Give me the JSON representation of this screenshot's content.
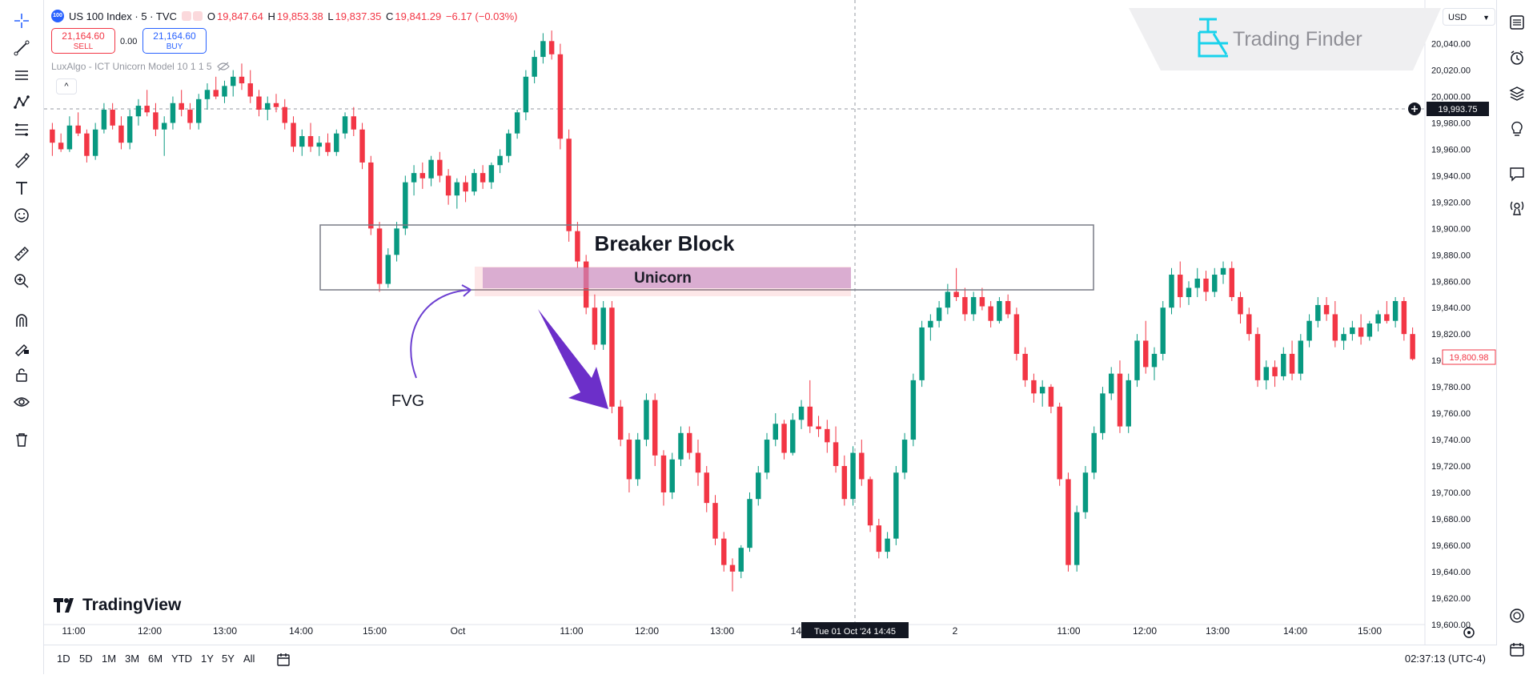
{
  "header": {
    "symbol_badge": "100",
    "symbol": "US 100 Index · 5 · TVC",
    "ohlc": [
      {
        "label": "O",
        "value": "19,847.64"
      },
      {
        "label": "H",
        "value": "19,853.38"
      },
      {
        "label": "L",
        "value": "19,837.35"
      },
      {
        "label": "C",
        "value": "19,841.29"
      }
    ],
    "change": "−6.17 (−0.03%)"
  },
  "trade": {
    "sell_price": "21,164.60",
    "sell_label": "SELL",
    "spread": "0.00",
    "buy_price": "21,164.60",
    "buy_label": "BUY"
  },
  "indicator": {
    "name": "LuxAlgo - ICT Unicorn Model 10 1 1 5"
  },
  "currency": "USD",
  "logo_text": "Trading Finder",
  "watermark": "TradingView",
  "chart_data": {
    "type": "candlestick",
    "symbol": "US 100 Index",
    "interval": "5",
    "price_axis": [
      "20,040.00",
      "20,020.00",
      "20,000.00",
      "19,980.00",
      "19,960.00",
      "19,940.00",
      "19,920.00",
      "19,900.00",
      "19,880.00",
      "19,860.00",
      "19,840.00",
      "19,820.00",
      "19,800.00",
      "19,780.00",
      "19,760.00",
      "19,740.00",
      "19,720.00",
      "19,700.00",
      "19,680.00",
      "19,660.00",
      "19,640.00",
      "19,620.00",
      "19,600.00"
    ],
    "time_axis": [
      "11:00",
      "12:00",
      "13:00",
      "14:00",
      "15:00",
      "Oct",
      "11:00",
      "12:00",
      "13:00",
      "14:",
      "2",
      "11:00",
      "12:00",
      "13:00",
      "14:00",
      "15:00"
    ],
    "crosshair_time": "Tue 01 Oct '24   14:45",
    "crosshair_price": "19,993.75",
    "last_price": "19,800.98",
    "ylim": [
      19600,
      20050
    ],
    "colors": {
      "up": "#089981",
      "down": "#f23645"
    },
    "annotations": {
      "breaker_block": "Breaker Block",
      "unicorn": "Unicorn",
      "fvg": "FVG"
    },
    "candles": [
      [
        19975,
        19980,
        19955,
        19965
      ],
      [
        19965,
        19972,
        19958,
        19960
      ],
      [
        19960,
        19985,
        19958,
        19978
      ],
      [
        19978,
        19988,
        19970,
        19972
      ],
      [
        19972,
        19975,
        19950,
        19955
      ],
      [
        19955,
        19980,
        19952,
        19975
      ],
      [
        19975,
        19995,
        19972,
        19990
      ],
      [
        19990,
        19995,
        19975,
        19978
      ],
      [
        19978,
        19985,
        19960,
        19965
      ],
      [
        19965,
        19990,
        19960,
        19985
      ],
      [
        19985,
        19998,
        19978,
        19993
      ],
      [
        19993,
        20005,
        19985,
        19988
      ],
      [
        19988,
        19995,
        19970,
        19975
      ],
      [
        19975,
        19985,
        19955,
        19980
      ],
      [
        19980,
        20000,
        19975,
        19995
      ],
      [
        19995,
        20005,
        19985,
        19990
      ],
      [
        19990,
        19995,
        19975,
        19980
      ],
      [
        19980,
        20002,
        19975,
        19998
      ],
      [
        19998,
        20010,
        19990,
        20005
      ],
      [
        20005,
        20015,
        19998,
        20000
      ],
      [
        20000,
        20012,
        19995,
        20008
      ],
      [
        20008,
        20020,
        20000,
        20015
      ],
      [
        20015,
        20025,
        20005,
        20010
      ],
      [
        20010,
        20020,
        19995,
        20000
      ],
      [
        20000,
        20005,
        19985,
        19990
      ],
      [
        19990,
        20000,
        19982,
        19995
      ],
      [
        19995,
        20002,
        19988,
        19992
      ],
      [
        19992,
        19998,
        19975,
        19980
      ],
      [
        19980,
        19985,
        19958,
        19962
      ],
      [
        19962,
        19975,
        19955,
        19970
      ],
      [
        19970,
        19980,
        19958,
        19962
      ],
      [
        19962,
        19970,
        19955,
        19965
      ],
      [
        19965,
        19972,
        19955,
        19958
      ],
      [
        19958,
        19975,
        19955,
        19972
      ],
      [
        19972,
        19988,
        19968,
        19985
      ],
      [
        19985,
        19992,
        19970,
        19975
      ],
      [
        19975,
        19980,
        19945,
        19950
      ],
      [
        19950,
        19955,
        19895,
        19900
      ],
      [
        19900,
        19905,
        19852,
        19858
      ],
      [
        19858,
        19885,
        19855,
        19880
      ],
      [
        19880,
        19905,
        19875,
        19900
      ],
      [
        19900,
        19940,
        19895,
        19935
      ],
      [
        19935,
        19948,
        19925,
        19942
      ],
      [
        19942,
        19950,
        19930,
        19938
      ],
      [
        19938,
        19955,
        19932,
        19952
      ],
      [
        19952,
        19958,
        19935,
        19940
      ],
      [
        19940,
        19945,
        19918,
        19925
      ],
      [
        19925,
        19938,
        19915,
        19935
      ],
      [
        19935,
        19940,
        19920,
        19928
      ],
      [
        19928,
        19945,
        19925,
        19942
      ],
      [
        19942,
        19948,
        19930,
        19935
      ],
      [
        19935,
        19950,
        19930,
        19948
      ],
      [
        19948,
        19960,
        19942,
        19955
      ],
      [
        19955,
        19975,
        19950,
        19972
      ],
      [
        19972,
        19990,
        19968,
        19988
      ],
      [
        19988,
        20020,
        19982,
        20015
      ],
      [
        20015,
        20035,
        20010,
        20030
      ],
      [
        20030,
        20048,
        20025,
        20042
      ],
      [
        20042,
        20050,
        20028,
        20032
      ],
      [
        20032,
        20040,
        19960,
        19968
      ],
      [
        19968,
        19975,
        19890,
        19898
      ],
      [
        19898,
        19905,
        19870,
        19875
      ],
      [
        19875,
        19880,
        19835,
        19840
      ],
      [
        19840,
        19850,
        19808,
        19812
      ],
      [
        19812,
        19845,
        19808,
        19840
      ],
      [
        19840,
        19845,
        19760,
        19765
      ],
      [
        19765,
        19770,
        19735,
        19740
      ],
      [
        19740,
        19745,
        19700,
        19710
      ],
      [
        19710,
        19745,
        19705,
        19740
      ],
      [
        19740,
        19775,
        19735,
        19770
      ],
      [
        19770,
        19775,
        19720,
        19728
      ],
      [
        19728,
        19732,
        19690,
        19700
      ],
      [
        19700,
        19730,
        19695,
        19725
      ],
      [
        19725,
        19750,
        19720,
        19745
      ],
      [
        19745,
        19750,
        19725,
        19730
      ],
      [
        19730,
        19740,
        19705,
        19715
      ],
      [
        19715,
        19720,
        19685,
        19692
      ],
      [
        19692,
        19698,
        19660,
        19665
      ],
      [
        19665,
        19670,
        19640,
        19645
      ],
      [
        19645,
        19650,
        19625,
        19640
      ],
      [
        19640,
        19660,
        19635,
        19658
      ],
      [
        19658,
        19700,
        19655,
        19695
      ],
      [
        19695,
        19720,
        19690,
        19715
      ],
      [
        19715,
        19745,
        19710,
        19740
      ],
      [
        19740,
        19760,
        19735,
        19752
      ],
      [
        19752,
        19755,
        19725,
        19730
      ],
      [
        19730,
        19760,
        19728,
        19755
      ],
      [
        19755,
        19770,
        19748,
        19765
      ],
      [
        19765,
        19785,
        19745,
        19750
      ],
      [
        19750,
        19758,
        19742,
        19748
      ],
      [
        19748,
        19755,
        19730,
        19738
      ],
      [
        19738,
        19750,
        19715,
        19720
      ],
      [
        19720,
        19728,
        19690,
        19695
      ],
      [
        19695,
        19735,
        19690,
        19730
      ],
      [
        19730,
        19740,
        19705,
        19710
      ],
      [
        19710,
        19712,
        19670,
        19675
      ],
      [
        19675,
        19680,
        19650,
        19655
      ],
      [
        19655,
        19670,
        19650,
        19665
      ],
      [
        19665,
        19720,
        19660,
        19715
      ],
      [
        19715,
        19745,
        19710,
        19740
      ],
      [
        19740,
        19790,
        19735,
        19785
      ],
      [
        19785,
        19830,
        19780,
        19825
      ],
      [
        19825,
        19835,
        19815,
        19830
      ],
      [
        19830,
        19845,
        19825,
        19840
      ],
      [
        19840,
        19858,
        19835,
        19852
      ],
      [
        19852,
        19870,
        19845,
        19848
      ],
      [
        19848,
        19855,
        19830,
        19835
      ],
      [
        19835,
        19852,
        19830,
        19848
      ],
      [
        19848,
        19855,
        19838,
        19841
      ],
      [
        19841,
        19845,
        19825,
        19830
      ],
      [
        19830,
        19848,
        19828,
        19845
      ],
      [
        19845,
        19850,
        19832,
        19835
      ],
      [
        19835,
        19840,
        19800,
        19805
      ],
      [
        19805,
        19810,
        19780,
        19785
      ],
      [
        19785,
        19790,
        19768,
        19775
      ],
      [
        19775,
        19785,
        19765,
        19780
      ],
      [
        19780,
        19782,
        19760,
        19765
      ],
      [
        19765,
        19768,
        19705,
        19710
      ],
      [
        19710,
        19715,
        19640,
        19645
      ],
      [
        19645,
        19690,
        19640,
        19685
      ],
      [
        19685,
        19720,
        19680,
        19715
      ],
      [
        19715,
        19750,
        19710,
        19745
      ],
      [
        19745,
        19780,
        19740,
        19775
      ],
      [
        19775,
        19795,
        19770,
        19790
      ],
      [
        19790,
        19800,
        19745,
        19750
      ],
      [
        19750,
        19790,
        19745,
        19785
      ],
      [
        19785,
        19820,
        19780,
        19815
      ],
      [
        19815,
        19830,
        19790,
        19795
      ],
      [
        19795,
        19810,
        19785,
        19805
      ],
      [
        19805,
        19845,
        19800,
        19840
      ],
      [
        19840,
        19870,
        19835,
        19865
      ],
      [
        19865,
        19875,
        19840,
        19848
      ],
      [
        19848,
        19860,
        19842,
        19855
      ],
      [
        19855,
        19870,
        19848,
        19862
      ],
      [
        19862,
        19868,
        19845,
        19852
      ],
      [
        19852,
        19870,
        19848,
        19865
      ],
      [
        19865,
        19875,
        19858,
        19870
      ],
      [
        19870,
        19875,
        19845,
        19848
      ],
      [
        19848,
        19852,
        19828,
        19835
      ],
      [
        19835,
        19840,
        19815,
        19820
      ],
      [
        19820,
        19825,
        19780,
        19785
      ],
      [
        19785,
        19800,
        19778,
        19795
      ],
      [
        19795,
        19800,
        19780,
        19788
      ],
      [
        19788,
        19810,
        19785,
        19805
      ],
      [
        19805,
        19815,
        19785,
        19790
      ],
      [
        19790,
        19820,
        19785,
        19815
      ],
      [
        19815,
        19835,
        19810,
        19830
      ],
      [
        19830,
        19848,
        19825,
        19842
      ],
      [
        19842,
        19848,
        19830,
        19835
      ],
      [
        19835,
        19845,
        19810,
        19815
      ],
      [
        19815,
        19825,
        19808,
        19820
      ],
      [
        19820,
        19830,
        19815,
        19825
      ],
      [
        19825,
        19835,
        19812,
        19818
      ],
      [
        19818,
        19830,
        19815,
        19828
      ],
      [
        19828,
        19838,
        19822,
        19835
      ],
      [
        19835,
        19845,
        19828,
        19830
      ],
      [
        19830,
        19848,
        19825,
        19845
      ],
      [
        19845,
        19848,
        19815,
        19820
      ],
      [
        19820,
        19825,
        19800,
        19801
      ]
    ]
  },
  "bottom": {
    "ranges": [
      "1D",
      "5D",
      "1M",
      "3M",
      "6M",
      "YTD",
      "1Y",
      "5Y",
      "All"
    ],
    "clock": "02:37:13 (UTC-4)"
  },
  "left_tools": [
    "crosshair-icon",
    "trend-line-icon",
    "horizontal-lines-icon",
    "pattern-icon",
    "fib-icon",
    "brush-icon",
    "text-icon",
    "emoji-icon",
    "ruler-icon",
    "zoom-icon",
    "magnet-icon",
    "lock-draw-icon",
    "lock-icon",
    "eye-icon",
    "trash-icon"
  ],
  "right_tools": [
    "watchlist-icon",
    "alarm-icon",
    "layers-icon",
    "ideas-icon",
    "chat-icon",
    "broadcast-icon",
    "help-icon",
    "calendar-icon"
  ]
}
